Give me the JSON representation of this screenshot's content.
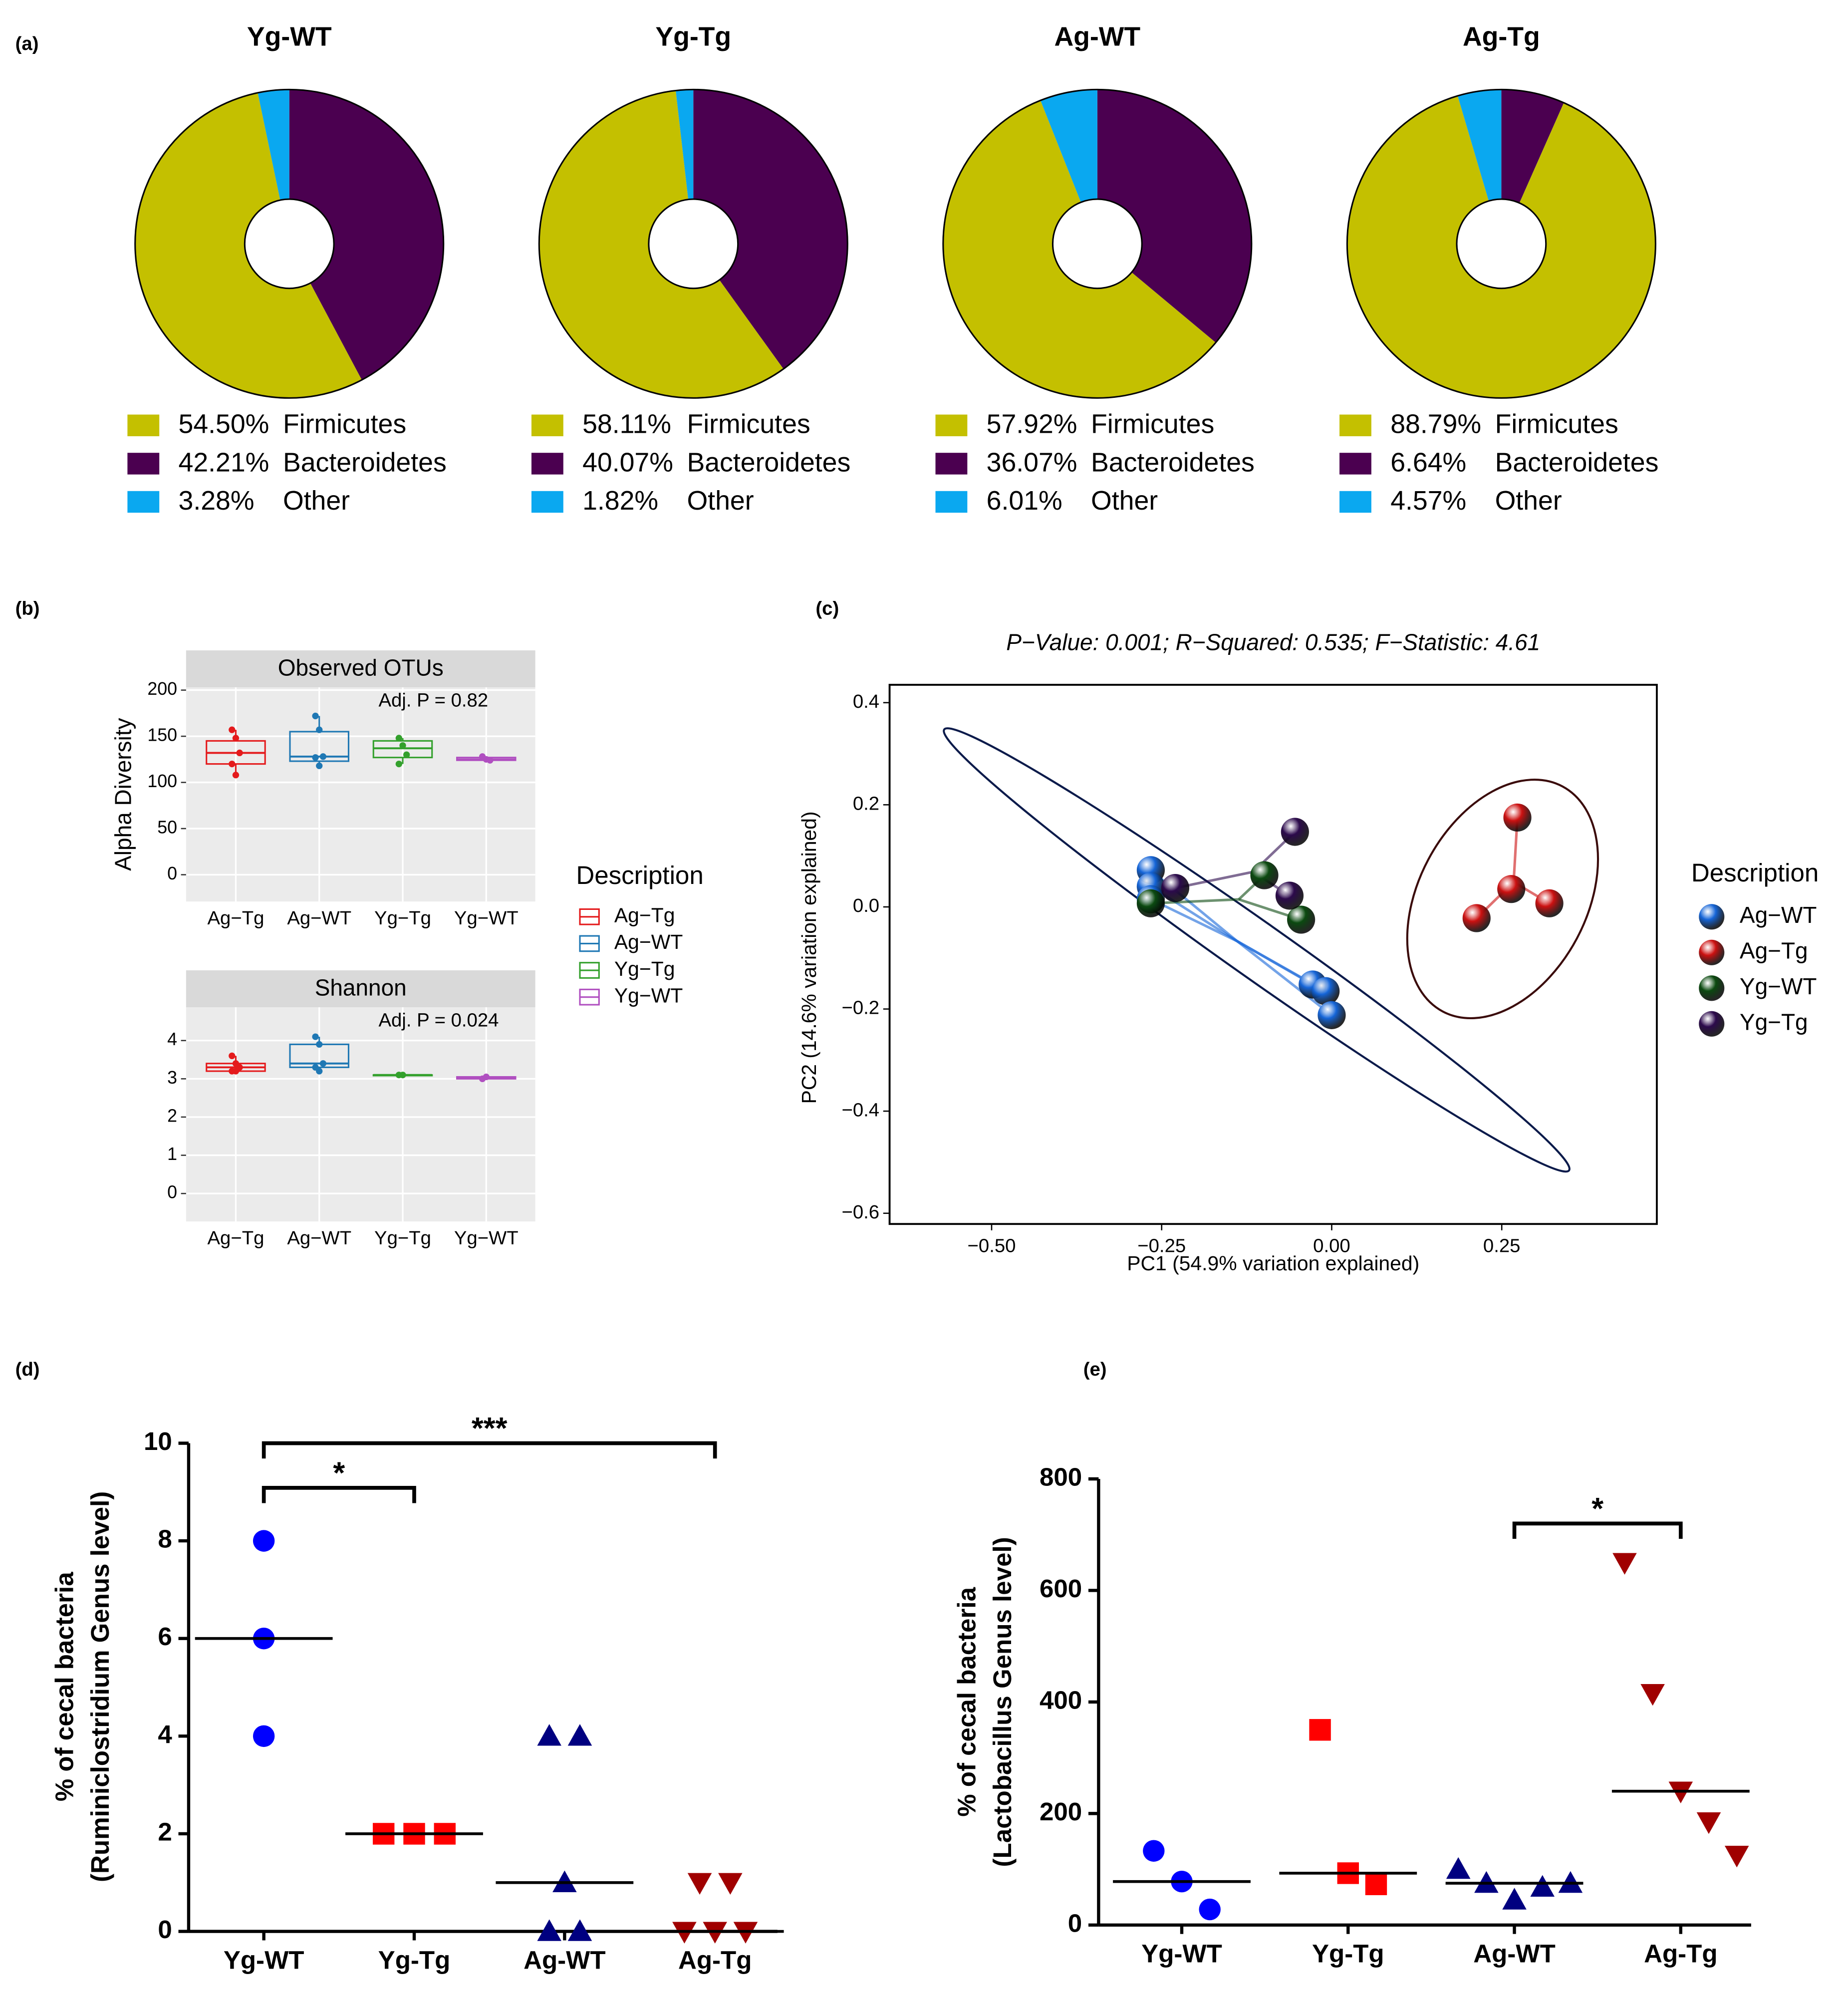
{
  "panel_labels": [
    "(a)",
    "(b)",
    "(c)",
    "(d)",
    "(e)"
  ],
  "chart_data": [
    {
      "type": "pie",
      "title": "Yg-WT",
      "categories": [
        "Firmicutes",
        "Bacteroidetes",
        "Other"
      ],
      "values": [
        54.5,
        42.21,
        3.28
      ],
      "value_labels": [
        "54.50%",
        "42.21%",
        "3.28%"
      ],
      "colors": [
        "#c4c000",
        "#4b0050",
        "#0aa8f0"
      ]
    },
    {
      "type": "pie",
      "title": "Yg-Tg",
      "categories": [
        "Firmicutes",
        "Bacteroidetes",
        "Other"
      ],
      "values": [
        58.11,
        40.07,
        1.82
      ],
      "value_labels": [
        "58.11%",
        "40.07%",
        "1.82%"
      ],
      "colors": [
        "#c4c000",
        "#4b0050",
        "#0aa8f0"
      ]
    },
    {
      "type": "pie",
      "title": "Ag-WT",
      "categories": [
        "Firmicutes",
        "Bacteroidetes",
        "Other"
      ],
      "values": [
        57.92,
        36.07,
        6.01
      ],
      "value_labels": [
        "57.92%",
        "36.07%",
        "6.01%"
      ],
      "colors": [
        "#c4c000",
        "#4b0050",
        "#0aa8f0"
      ]
    },
    {
      "type": "pie",
      "title": "Ag-Tg",
      "categories": [
        "Firmicutes",
        "Bacteroidetes",
        "Other"
      ],
      "values": [
        88.79,
        6.64,
        4.57
      ],
      "value_labels": [
        "88.79%",
        "6.64%",
        "4.57%"
      ],
      "colors": [
        "#c4c000",
        "#4b0050",
        "#0aa8f0"
      ]
    },
    {
      "type": "box",
      "ylabel": "Alpha Diversity",
      "legend_title": "Description",
      "categories": [
        "Ag−Tg",
        "Ag−WT",
        "Yg−Tg",
        "Yg−WT"
      ],
      "colors": [
        "#e41a1c",
        "#1f78b4",
        "#33a02c",
        "#b04fc0"
      ],
      "facets": [
        {
          "title": "Observed OTUs",
          "annotation": "Adj. P =  0.82",
          "ylim": [
            -29,
            203
          ],
          "yticks": [
            0,
            50,
            100,
            150,
            200
          ],
          "boxes": [
            {
              "min": 108,
              "q1": 120,
              "median": 132,
              "q3": 145,
              "max": 157,
              "points": [
                157,
                148,
                132,
                120,
                108
              ]
            },
            {
              "min": 115,
              "q1": 123,
              "median": 128,
              "q3": 155,
              "max": 172,
              "points": [
                172,
                157,
                128,
                127,
                118
              ]
            },
            {
              "min": 120,
              "q1": 127,
              "median": 137,
              "q3": 145,
              "max": 148,
              "points": [
                148,
                140,
                130,
                120
              ]
            },
            {
              "min": 123,
              "q1": 124,
              "median": 125,
              "q3": 127,
              "max": 128,
              "points": [
                128,
                125,
                124
              ]
            }
          ]
        },
        {
          "title": "Shannon",
          "annotation": "Adj. P =  0.024",
          "ylim": [
            -0.73,
            4.87
          ],
          "yticks": [
            0,
            1,
            2,
            3,
            4
          ],
          "boxes": [
            {
              "min": 3.2,
              "q1": 3.2,
              "median": 3.3,
              "q3": 3.4,
              "max": 3.6,
              "points": [
                3.6,
                3.4,
                3.3,
                3.2,
                3.2
              ]
            },
            {
              "min": 3.2,
              "q1": 3.3,
              "median": 3.4,
              "q3": 3.9,
              "max": 4.1,
              "points": [
                4.1,
                3.9,
                3.4,
                3.3,
                3.2
              ]
            },
            {
              "min": 3.1,
              "q1": 3.1,
              "median": 3.1,
              "q3": 3.1,
              "max": 3.1,
              "points": [
                3.1,
                3.1
              ]
            },
            {
              "min": 2.98,
              "q1": 3.0,
              "median": 3.02,
              "q3": 3.05,
              "max": 3.07,
              "points": [
                3.0,
                3.05
              ]
            }
          ]
        }
      ]
    },
    {
      "type": "scatter",
      "title": "P−Value: 0.001;  R−Squared: 0.535;  F−Statistic: 4.61",
      "xlabel": "PC1 (54.9% variation explained)",
      "ylabel": "PC2 (14.6% variation explained)",
      "xlim": [
        -0.65,
        0.478
      ],
      "ylim": [
        -0.621,
        0.435
      ],
      "xticks": [
        {
          "value": -0.5,
          "label": "−0.50"
        },
        {
          "value": -0.25,
          "label": "−0.25"
        },
        {
          "value": 0,
          "label": "0.00"
        },
        0.25
      ],
      "yticks": [
        0.4,
        0.2,
        {
          "value": 0,
          "label": "0.0"
        },
        {
          "value": -0.2,
          "label": "−0.2"
        },
        {
          "value": -0.4,
          "label": "−0.4"
        },
        {
          "value": -0.6,
          "label": "−0.6"
        }
      ],
      "legend_title": "Description",
      "series": [
        {
          "name": "Ag−WT",
          "color": "#1565d8",
          "x": [
            -0.266,
            -0.266,
            -0.266,
            -0.028,
            -0.009,
            0.0
          ],
          "y": [
            0.072,
            0.04,
            0.015,
            -0.152,
            -0.165,
            -0.212
          ]
        },
        {
          "name": "Ag−Tg",
          "color": "#cc1111",
          "x": [
            0.273,
            0.264,
            0.213,
            0.32
          ],
          "y": [
            0.175,
            0.035,
            -0.022,
            0.007
          ]
        },
        {
          "name": "Yg−WT",
          "color": "#0b4a10",
          "x": [
            -0.266,
            -0.099,
            -0.045
          ],
          "y": [
            0.007,
            0.062,
            -0.025
          ]
        },
        {
          "name": "Yg−Tg",
          "color": "#2c0a4c",
          "x": [
            -0.054,
            -0.23,
            -0.062
          ],
          "y": [
            0.147,
            0.037,
            0.022
          ]
        }
      ]
    },
    {
      "type": "dot",
      "ylabel": [
        "% of cecal bacteria",
        "(Ruminiclostridium Genus level)"
      ],
      "ylim": [
        0,
        10
      ],
      "yticks": [
        0,
        2,
        4,
        6,
        8,
        10
      ],
      "series": [
        {
          "name": "Yg-WT",
          "color": "#0000ff",
          "marker": "circle",
          "values": [
            8,
            6,
            4
          ],
          "median": 6
        },
        {
          "name": "Yg-Tg",
          "color": "#ff0000",
          "marker": "square",
          "values": [
            2,
            2,
            2
          ],
          "median": 2
        },
        {
          "name": "Ag-WT",
          "color": "#000080",
          "marker": "triangle",
          "values": [
            4,
            4,
            1,
            0,
            0
          ],
          "median": 1
        },
        {
          "name": "Ag-Tg",
          "color": "#a00000",
          "marker": "triangle-down",
          "values": [
            1,
            1,
            0,
            0,
            0
          ],
          "median": 0
        }
      ],
      "comparisons": [
        {
          "from": 0,
          "to": 1,
          "label": "*"
        },
        {
          "from": 0,
          "to": 3,
          "label": "***"
        }
      ]
    },
    {
      "type": "dot",
      "ylabel": [
        "% of cecal bacteria",
        "(Lactobacillus Genus level)"
      ],
      "ylim": [
        0,
        800
      ],
      "yticks": [
        0,
        200,
        400,
        600,
        800
      ],
      "series": [
        {
          "name": "Yg-WT",
          "color": "#0000ff",
          "marker": "circle",
          "values": [
            133,
            78,
            28
          ],
          "median": 78
        },
        {
          "name": "Yg-Tg",
          "color": "#ff0000",
          "marker": "square",
          "values": [
            350,
            93,
            73
          ],
          "median": 93
        },
        {
          "name": "Ag-WT",
          "color": "#000080",
          "marker": "triangle",
          "values": [
            100,
            75,
            45,
            68,
            75
          ],
          "median": 75
        },
        {
          "name": "Ag-Tg",
          "color": "#a00000",
          "marker": "triangle-down",
          "values": [
            650,
            415,
            240,
            185,
            125
          ],
          "median": 240
        }
      ],
      "comparisons": [
        {
          "from": 2,
          "to": 3,
          "label": "*"
        }
      ]
    }
  ]
}
